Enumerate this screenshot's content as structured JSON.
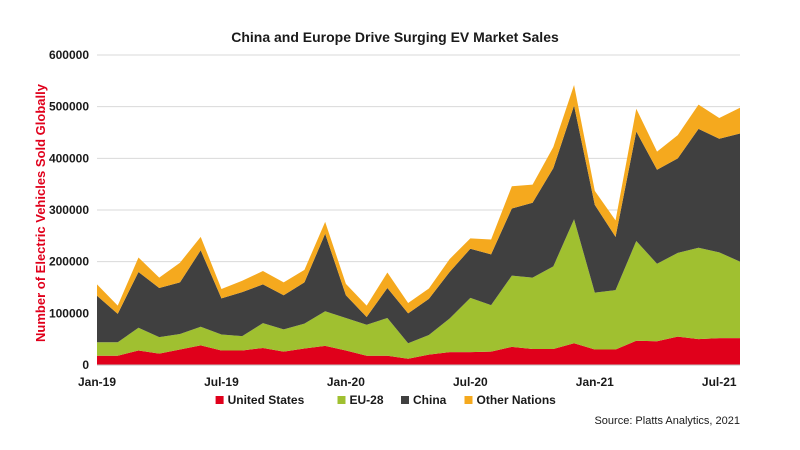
{
  "chart_data": {
    "type": "area",
    "stacked": true,
    "title": "China and Europe Drive Surging EV Market Sales",
    "xlabel": "",
    "ylabel": "Number of Electric Vehicles Sold Globally",
    "ylim": [
      0,
      600000
    ],
    "y_ticks": [
      "0",
      "100000",
      "200000",
      "300000",
      "400000",
      "500000",
      "600000"
    ],
    "x_tick_labels": [
      {
        "index": 0,
        "label": "Jan-19"
      },
      {
        "index": 6,
        "label": "Jul-19"
      },
      {
        "index": 12,
        "label": "Jan-20"
      },
      {
        "index": 18,
        "label": "Jul-20"
      },
      {
        "index": 24,
        "label": "Jan-21"
      },
      {
        "index": 30,
        "label": "Jul-21"
      }
    ],
    "x": [
      "Jan-19",
      "Feb-19",
      "Mar-19",
      "Apr-19",
      "May-19",
      "Jun-19",
      "Jul-19",
      "Aug-19",
      "Sep-19",
      "Oct-19",
      "Nov-19",
      "Dec-19",
      "Jan-20",
      "Feb-20",
      "Mar-20",
      "Apr-20",
      "May-20",
      "Jun-20",
      "Jul-20",
      "Aug-20",
      "Sep-20",
      "Oct-20",
      "Nov-20",
      "Dec-20",
      "Jan-21",
      "Feb-21",
      "Mar-21",
      "Apr-21",
      "May-21",
      "Jun-21",
      "Jul-21",
      "Aug-21"
    ],
    "grid": true,
    "legend_position": "bottom",
    "series": [
      {
        "name": "United States",
        "color": "#e0001b",
        "values": [
          18000,
          18000,
          28000,
          22000,
          30000,
          38000,
          28000,
          28000,
          33000,
          26000,
          32000,
          37000,
          28000,
          18000,
          18000,
          12000,
          20000,
          25000,
          25000,
          26000,
          35000,
          31000,
          31000,
          42000,
          30000,
          30000,
          47000,
          46000,
          55000,
          50000,
          52000,
          52000
        ]
      },
      {
        "name": "EU-28",
        "color": "#a0c030",
        "values": [
          26000,
          26000,
          44000,
          32000,
          30000,
          36000,
          31000,
          28000,
          48000,
          43000,
          48000,
          67000,
          63000,
          60000,
          73000,
          30000,
          38000,
          65000,
          105000,
          90000,
          138000,
          138000,
          160000,
          240000,
          110000,
          115000,
          193000,
          150000,
          162000,
          177000,
          166000,
          148000
        ]
      },
      {
        "name": "China",
        "color": "#404040",
        "values": [
          90000,
          55000,
          108000,
          95000,
          100000,
          148000,
          70000,
          85000,
          75000,
          66000,
          80000,
          150000,
          44000,
          15000,
          58000,
          58000,
          70000,
          90000,
          95000,
          98000,
          130000,
          145000,
          190000,
          220000,
          170000,
          103000,
          212000,
          182000,
          183000,
          230000,
          220000,
          248000
        ]
      },
      {
        "name": "Other Nations",
        "color": "#f5a91e",
        "values": [
          22000,
          16000,
          28000,
          20000,
          38000,
          26000,
          18000,
          22000,
          26000,
          25000,
          24000,
          23000,
          22000,
          22000,
          30000,
          20000,
          20000,
          25000,
          20000,
          29000,
          43000,
          35000,
          41000,
          40000,
          27000,
          32000,
          44000,
          35000,
          45000,
          47000,
          40000,
          50000
        ]
      }
    ],
    "source": "Source: Platts Analytics, 2021"
  }
}
